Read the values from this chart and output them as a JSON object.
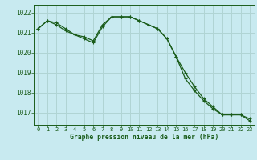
{
  "title": "Graphe pression niveau de la mer (hPa)",
  "bg_color": "#c8eaf0",
  "grid_color": "#b0d4d4",
  "line_color": "#1a5c1a",
  "xlim": [
    -0.5,
    23.5
  ],
  "ylim": [
    1016.4,
    1022.4
  ],
  "yticks": [
    1017,
    1018,
    1019,
    1020,
    1021,
    1022
  ],
  "xticks": [
    0,
    1,
    2,
    3,
    4,
    5,
    6,
    7,
    8,
    9,
    10,
    11,
    12,
    13,
    14,
    15,
    16,
    17,
    18,
    19,
    20,
    21,
    22,
    23
  ],
  "series1": [
    1021.2,
    1021.6,
    1021.5,
    1021.2,
    1020.9,
    1020.8,
    1020.6,
    1021.4,
    1021.8,
    1021.8,
    1021.8,
    1021.6,
    1021.4,
    1021.2,
    1020.7,
    1019.8,
    1019.0,
    1018.3,
    1017.7,
    1017.3,
    1016.9,
    1016.9,
    1016.9,
    1016.7
  ],
  "series2": [
    1021.2,
    1021.6,
    1021.4,
    1021.1,
    1020.9,
    1020.7,
    1020.5,
    1021.3,
    1021.8,
    1021.8,
    1021.8,
    1021.6,
    1021.4,
    1021.2,
    1020.7,
    1019.8,
    1018.7,
    1018.1,
    1017.6,
    1017.2,
    1016.9,
    1016.9,
    1016.9,
    1016.6
  ],
  "title_fontsize": 5.8,
  "xlabel_fontsize": 5.0,
  "ylabel_fontsize": 5.5
}
